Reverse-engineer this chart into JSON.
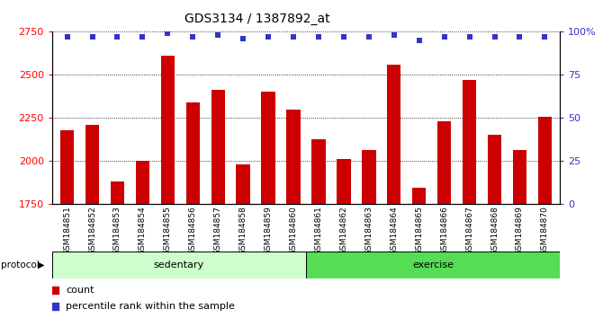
{
  "title": "GDS3134 / 1387892_at",
  "categories": [
    "GSM184851",
    "GSM184852",
    "GSM184853",
    "GSM184854",
    "GSM184855",
    "GSM184856",
    "GSM184857",
    "GSM184858",
    "GSM184859",
    "GSM184860",
    "GSM184861",
    "GSM184862",
    "GSM184863",
    "GSM184864",
    "GSM184865",
    "GSM184866",
    "GSM184867",
    "GSM184868",
    "GSM184869",
    "GSM184870"
  ],
  "bar_values": [
    2175,
    2210,
    1880,
    2000,
    2610,
    2340,
    2410,
    1980,
    2400,
    2295,
    2125,
    2010,
    2060,
    2560,
    1840,
    2230,
    2470,
    2150,
    2060,
    2255
  ],
  "percentile_values": [
    97,
    97,
    97,
    97,
    99,
    97,
    98,
    96,
    97,
    97,
    97,
    97,
    97,
    98,
    95,
    97,
    97,
    97,
    97,
    97
  ],
  "bar_color": "#cc0000",
  "dot_color": "#3333cc",
  "ylim_left": [
    1750,
    2750
  ],
  "ylim_right": [
    0,
    100
  ],
  "yticks_left": [
    1750,
    2000,
    2250,
    2500,
    2750
  ],
  "yticks_right": [
    0,
    25,
    50,
    75,
    100
  ],
  "ytick_labels_right": [
    "0",
    "25",
    "50",
    "75",
    "100%"
  ],
  "protocol_label": "protocol",
  "sedentary_label": "sedentary",
  "exercise_label": "exercise",
  "legend_count_label": "count",
  "legend_percentile_label": "percentile rank within the sample",
  "xticklabel_bg_color": "#d8d8d8",
  "sedentary_color": "#ccffcc",
  "exercise_color": "#55dd55",
  "grid_color": "#555555",
  "title_fontsize": 10,
  "tick_fontsize": 6.5,
  "bar_width": 0.55,
  "n_sedentary": 10,
  "n_exercise": 10
}
